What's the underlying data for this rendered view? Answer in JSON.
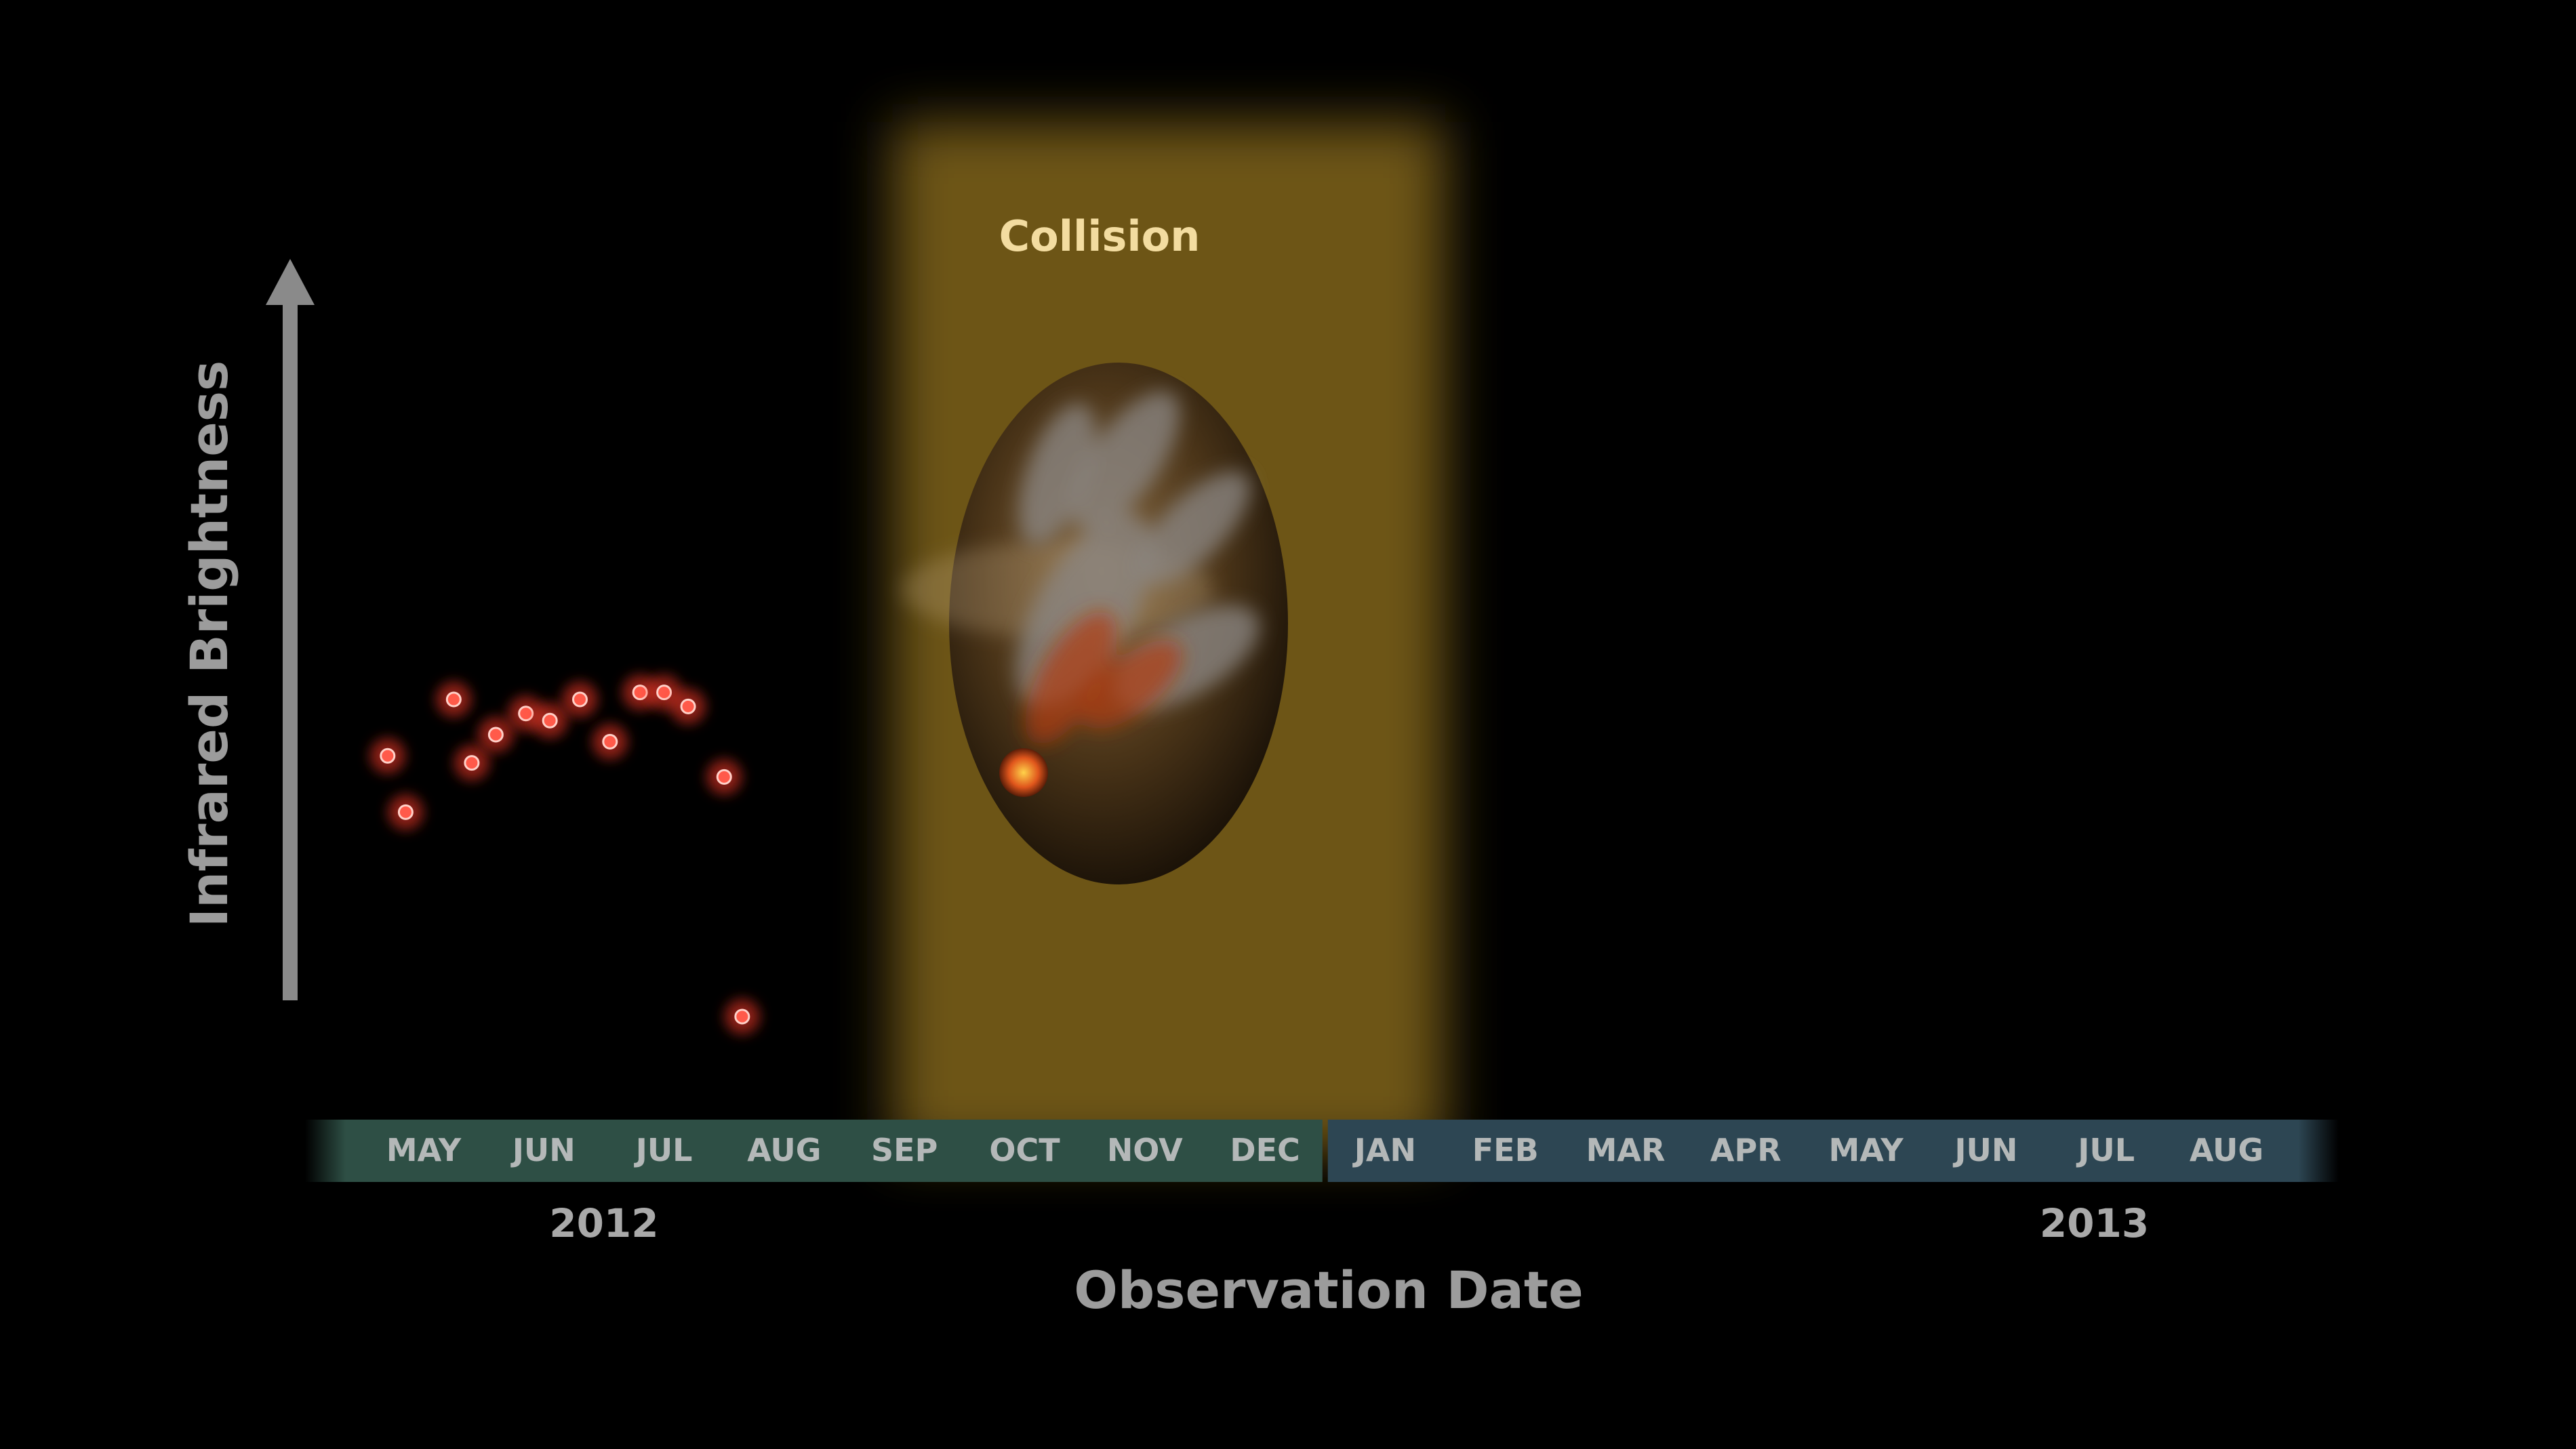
{
  "chart_data": {
    "type": "scatter",
    "title": "",
    "xlabel": "Observation Date",
    "ylabel": "Infrared Brightness",
    "categories": [
      "MAY",
      "JUN",
      "JUL",
      "AUG",
      "SEP",
      "OCT",
      "NOV",
      "DEC",
      "JAN",
      "FEB",
      "MAR",
      "APR",
      "MAY",
      "JUN",
      "JUL",
      "AUG"
    ],
    "years": [
      {
        "label": "2012",
        "month_index": 1.5
      },
      {
        "label": "2013",
        "month_index": 13.9
      }
    ],
    "year_boundary_index": 7.5,
    "annotation": {
      "label": "Collision",
      "from_index": 3.9,
      "to_index": 8.5
    },
    "ylim": [
      0,
      100
    ],
    "y_ticks_shown": false,
    "grid": false,
    "legend": "none",
    "point_color": "#ff5a4a",
    "glow_color": "#ff3c28",
    "highlight_color": "#c79a2a",
    "bar_2012_color": "#2e4f45",
    "bar_2013_color": "#2d4653",
    "series": [
      {
        "x": [
          -0.3,
          -0.15,
          0.25,
          0.4,
          0.6,
          0.85,
          1.05,
          1.3,
          1.55,
          1.8,
          2.0,
          2.2,
          2.5,
          2.65
        ],
        "y": [
          37,
          29,
          45,
          36,
          40,
          43,
          42,
          45,
          39,
          46,
          46,
          44,
          34,
          0
        ]
      }
    ]
  }
}
